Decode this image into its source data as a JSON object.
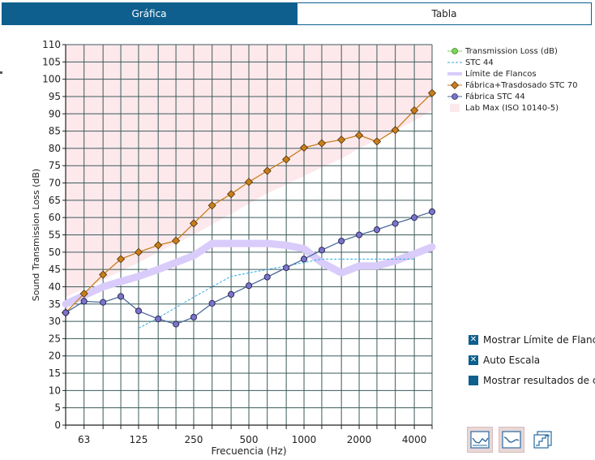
{
  "tabs": [
    {
      "label": "Gráfica",
      "active": true
    },
    {
      "label": "Tabla",
      "active": false
    }
  ],
  "colors": {
    "accent": "#0e5f8e",
    "tl": "#7fd45a",
    "stc44": "#2ea8e0",
    "flank": "#d9ccfb",
    "fabrica_trasdosado": "#c87f1a",
    "fabrica_stc": "#7b73cc",
    "labmax": "#fde9ec"
  },
  "legend": [
    {
      "key": "tl",
      "label": "Transmission Loss (dB)"
    },
    {
      "key": "stc",
      "label": "STC 44"
    },
    {
      "key": "flank",
      "label": "Límite de Flancos"
    },
    {
      "key": "ft",
      "label": "Fábrica+Trasdosado STC 70"
    },
    {
      "key": "fs",
      "label": "Fábrica STC 44"
    },
    {
      "key": "lab",
      "label": "Lab Max (ISO 10140-5)"
    }
  ],
  "options": [
    {
      "label": "Mostrar Límite de Flancos",
      "checked": true
    },
    {
      "label": "Auto Escala",
      "checked": true
    },
    {
      "label": "Mostrar resultados de cargas",
      "checked": false
    }
  ],
  "toolbar": [
    {
      "icon": "tl-curve-icon",
      "active": true
    },
    {
      "icon": "smooth-curve-icon",
      "active": true
    },
    {
      "icon": "step-curve-icon",
      "active": false
    }
  ],
  "chart_data": {
    "type": "line",
    "xlabel": "Frecuencia (Hz)",
    "ylabel": "Sound Transmission Loss (dB)",
    "xscale": "log",
    "xlim": [
      50,
      5000
    ],
    "ylim": [
      0,
      110
    ],
    "yticks": [
      0,
      5,
      10,
      15,
      20,
      25,
      30,
      35,
      40,
      45,
      50,
      55,
      60,
      65,
      70,
      75,
      80,
      85,
      90,
      95,
      100,
      105,
      110
    ],
    "xtick_labels": [
      {
        "f": 63,
        "label": "63"
      },
      {
        "f": 125,
        "label": "125"
      },
      {
        "f": 250,
        "label": "250"
      },
      {
        "f": 500,
        "label": "500"
      },
      {
        "f": 1000,
        "label": "1000"
      },
      {
        "f": 2000,
        "label": "2000"
      },
      {
        "f": 4000,
        "label": "4000"
      }
    ],
    "grid_frequencies": [
      50,
      63,
      80,
      100,
      125,
      160,
      200,
      250,
      315,
      400,
      500,
      630,
      800,
      1000,
      1250,
      1600,
      2000,
      2500,
      3150,
      4000,
      5000
    ],
    "grid": true,
    "legend_position": "right",
    "series": [
      {
        "name": "Fábrica+Trasdosado STC 70",
        "style": "diamond",
        "x": [
          50,
          63,
          80,
          100,
          125,
          160,
          200,
          250,
          315,
          400,
          500,
          630,
          800,
          1000,
          1250,
          1600,
          2000,
          2500,
          3150,
          4000,
          5000
        ],
        "y": [
          32.5,
          38,
          43.5,
          48,
          50,
          52,
          53.3,
          58.3,
          63.5,
          66.8,
          70.3,
          73.5,
          76.8,
          80.2,
          81.5,
          82.5,
          83.8,
          82,
          85.3,
          91,
          96
        ]
      },
      {
        "name": "Fábrica STC 44",
        "style": "circle",
        "x": [
          50,
          63,
          80,
          100,
          125,
          160,
          200,
          250,
          315,
          400,
          500,
          630,
          800,
          1000,
          1250,
          1600,
          2000,
          2500,
          3150,
          4000,
          5000
        ],
        "y": [
          32.5,
          35.8,
          35.5,
          37.2,
          33,
          30.7,
          29.2,
          31.2,
          35.2,
          37.8,
          40.3,
          42.8,
          45.5,
          48,
          50.6,
          53.2,
          55,
          56.5,
          58.3,
          60,
          61.7
        ]
      },
      {
        "name": "STC 44",
        "style": "dashed",
        "x": [
          125,
          160,
          200,
          250,
          315,
          400,
          500,
          630,
          800,
          1000,
          1250,
          1600,
          2000,
          2500,
          3150,
          4000
        ],
        "y": [
          28,
          31,
          34,
          37,
          40,
          43,
          44,
          45,
          46,
          47,
          48,
          48,
          48,
          48,
          48,
          48
        ]
      },
      {
        "name": "Límite de Flancos",
        "style": "band",
        "x": [
          50,
          63,
          80,
          100,
          125,
          160,
          200,
          250,
          315,
          400,
          500,
          630,
          800,
          1000,
          1250,
          1600,
          2000,
          2500,
          3150,
          4000,
          5000
        ],
        "y": [
          35,
          37.5,
          40,
          41.5,
          43,
          45,
          47,
          49,
          52.5,
          52.5,
          52.5,
          52.5,
          52,
          51,
          47,
          44,
          46,
          46,
          47.5,
          49.5,
          51.5
        ]
      },
      {
        "name": "Lab Max (ISO 10140-5)",
        "style": "area",
        "x": [
          50,
          63,
          80,
          100,
          125,
          160,
          200,
          250,
          315,
          400,
          500,
          630,
          800,
          1000,
          1250,
          1600,
          2000,
          2500,
          3150,
          4000,
          5000
        ],
        "y": [
          37,
          39.5,
          42,
          44.5,
          47,
          50,
          52.5,
          55,
          58,
          61,
          64,
          67,
          69.5,
          72,
          74.5,
          77,
          80,
          82.5,
          85,
          88,
          91
        ]
      }
    ]
  }
}
